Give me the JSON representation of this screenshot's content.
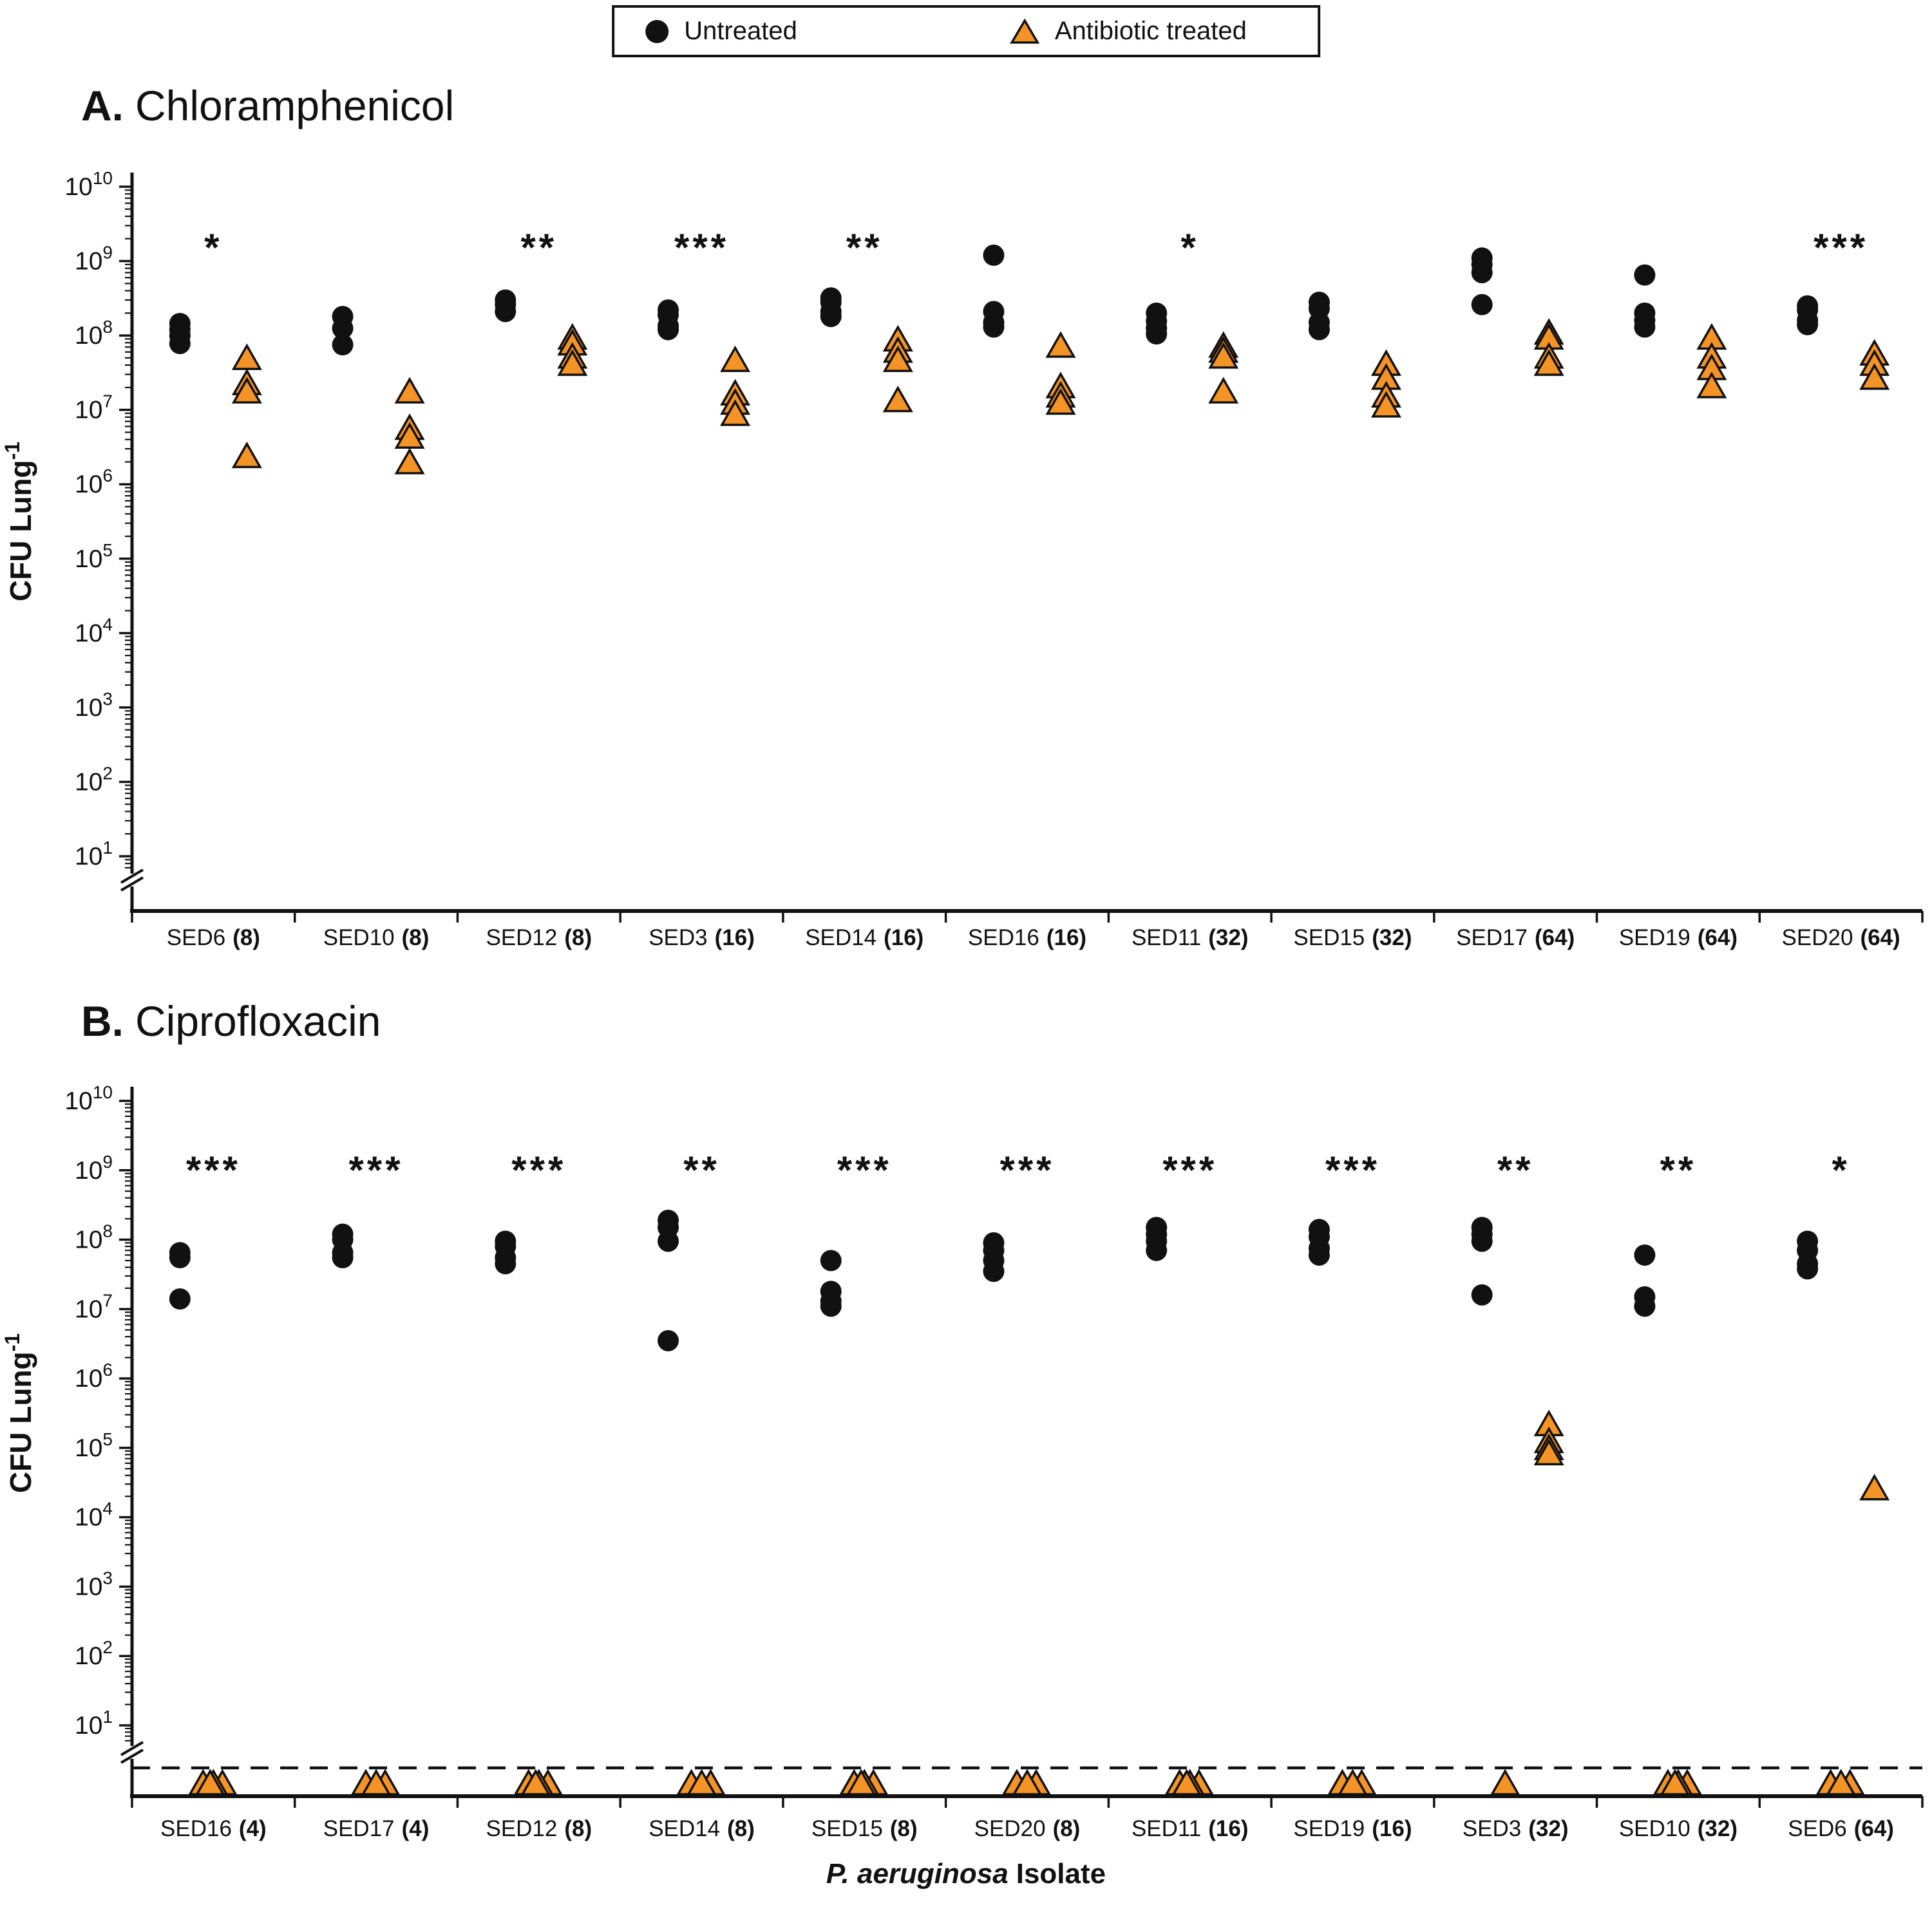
{
  "figure": {
    "xaxis_title_italic": "P. aeruginosa",
    "xaxis_title_rest": "Isolate"
  },
  "legend": {
    "items": [
      {
        "label": "Untreated",
        "marker": "circle",
        "color": "#111111"
      },
      {
        "label": "Antibiotic treated",
        "marker": "triangle",
        "color": "#F59426",
        "stroke": "#111111"
      }
    ]
  },
  "chart_data": [
    {
      "type": "scatter",
      "panel": "A",
      "title_prefix": "A.",
      "title": "Chloramphenicol",
      "y_scale": "log",
      "ylim": [
        10,
        10000000000.0
      ],
      "y_axis_break": true,
      "ylabel": "CFU Lung",
      "ylabel_sup": "-1",
      "detection_limit_line": false,
      "legend_position": "top-center",
      "groups": [
        {
          "label": "SED6",
          "mic": "(8)",
          "significance": "*",
          "untreated": [
            145000000.0,
            120000000.0,
            100000000.0,
            78000000.0
          ],
          "treated": [
            48000000.0,
            22000000.0,
            17000000.0,
            2300000.0
          ]
        },
        {
          "label": "SED10",
          "mic": "(8)",
          "significance": "",
          "untreated": [
            180000000.0,
            125000000.0,
            75000000.0
          ],
          "treated": [
            17000000.0,
            5500000.0,
            4200000.0,
            1900000.0
          ]
        },
        {
          "label": "SED12",
          "mic": "(8)",
          "significance": "**",
          "untreated": [
            300000000.0,
            260000000.0,
            210000000.0
          ],
          "treated": [
            90000000.0,
            75000000.0,
            50000000.0,
            40000000.0
          ]
        },
        {
          "label": "SED3",
          "mic": "(16)",
          "significance": "***",
          "untreated": [
            220000000.0,
            190000000.0,
            135000000.0,
            120000000.0
          ],
          "treated": [
            45000000.0,
            16000000.0,
            12000000.0,
            8500000.0
          ]
        },
        {
          "label": "SED14",
          "mic": "(16)",
          "significance": "**",
          "untreated": [
            320000000.0,
            280000000.0,
            210000000.0,
            180000000.0
          ],
          "treated": [
            85000000.0,
            60000000.0,
            45000000.0,
            13000000.0
          ]
        },
        {
          "label": "SED16",
          "mic": "(16)",
          "significance": "",
          "untreated": [
            1200000000.0,
            210000000.0,
            150000000.0,
            130000000.0
          ],
          "treated": [
            70000000.0,
            20000000.0,
            15000000.0,
            12000000.0
          ]
        },
        {
          "label": "SED11",
          "mic": "(32)",
          "significance": "*",
          "untreated": [
            200000000.0,
            155000000.0,
            125000000.0,
            105000000.0
          ],
          "treated": [
            70000000.0,
            60000000.0,
            50000000.0,
            17000000.0
          ]
        },
        {
          "label": "SED15",
          "mic": "(32)",
          "significance": "",
          "untreated": [
            280000000.0,
            230000000.0,
            150000000.0,
            120000000.0
          ],
          "treated": [
            40000000.0,
            26000000.0,
            15000000.0,
            11000000.0
          ]
        },
        {
          "label": "SED17",
          "mic": "(64)",
          "significance": "",
          "untreated": [
            1100000000.0,
            900000000.0,
            700000000.0,
            260000000.0
          ],
          "treated": [
            105000000.0,
            90000000.0,
            50000000.0,
            40000000.0
          ]
        },
        {
          "label": "SED19",
          "mic": "(64)",
          "significance": "",
          "untreated": [
            650000000.0,
            200000000.0,
            160000000.0,
            130000000.0
          ],
          "treated": [
            90000000.0,
            50000000.0,
            35000000.0,
            20000000.0
          ]
        },
        {
          "label": "SED20",
          "mic": "(64)",
          "significance": "***",
          "untreated": [
            250000000.0,
            220000000.0,
            160000000.0,
            140000000.0
          ],
          "treated": [
            55000000.0,
            40000000.0,
            26000000.0
          ]
        }
      ]
    },
    {
      "type": "scatter",
      "panel": "B",
      "title_prefix": "B.",
      "title": "Ciprofloxacin",
      "y_scale": "log",
      "ylim": [
        10,
        10000000000.0
      ],
      "y_axis_break": true,
      "ylabel": "CFU Lung",
      "ylabel_sup": "-1",
      "detection_limit_line": true,
      "legend_position": "top-center",
      "groups": [
        {
          "label": "SED16",
          "mic": "(4)",
          "significance": "***",
          "untreated": [
            65000000.0,
            55000000.0,
            14000000.0
          ],
          "treated": [
            "LOD",
            "LOD",
            "LOD",
            "LOD"
          ]
        },
        {
          "label": "SED17",
          "mic": "(4)",
          "significance": "***",
          "untreated": [
            120000000.0,
            100000000.0,
            65000000.0,
            55000000.0
          ],
          "treated": [
            "LOD",
            "LOD",
            "LOD"
          ]
        },
        {
          "label": "SED12",
          "mic": "(8)",
          "significance": "***",
          "untreated": [
            95000000.0,
            80000000.0,
            55000000.0,
            45000000.0
          ],
          "treated": [
            "LOD",
            "LOD",
            "LOD",
            "LOD"
          ]
        },
        {
          "label": "SED14",
          "mic": "(8)",
          "significance": "**",
          "untreated": [
            190000000.0,
            150000000.0,
            95000000.0,
            3500000.0
          ],
          "treated": [
            "LOD",
            "LOD",
            "LOD"
          ]
        },
        {
          "label": "SED15",
          "mic": "(8)",
          "significance": "***",
          "untreated": [
            50000000.0,
            18000000.0,
            13000000.0,
            11000000.0
          ],
          "treated": [
            "LOD",
            "LOD",
            "LOD",
            "LOD"
          ]
        },
        {
          "label": "SED20",
          "mic": "(8)",
          "significance": "***",
          "untreated": [
            90000000.0,
            70000000.0,
            50000000.0,
            35000000.0
          ],
          "treated": [
            "LOD",
            "LOD",
            "LOD"
          ]
        },
        {
          "label": "SED11",
          "mic": "(16)",
          "significance": "***",
          "untreated": [
            150000000.0,
            120000000.0,
            95000000.0,
            70000000.0
          ],
          "treated": [
            "LOD",
            "LOD",
            "LOD",
            "LOD"
          ]
        },
        {
          "label": "SED19",
          "mic": "(16)",
          "significance": "***",
          "untreated": [
            140000000.0,
            110000000.0,
            75000000.0,
            60000000.0
          ],
          "treated": [
            "LOD",
            "LOD",
            "LOD"
          ]
        },
        {
          "label": "SED3",
          "mic": "(32)",
          "significance": "**",
          "untreated": [
            150000000.0,
            120000000.0,
            95000000.0,
            16000000.0
          ],
          "treated": [
            210000.0,
            120000.0,
            95000.0,
            80000.0,
            "LOD"
          ]
        },
        {
          "label": "SED10",
          "mic": "(32)",
          "significance": "**",
          "untreated": [
            60000000.0,
            15000000.0,
            11000000.0
          ],
          "treated": [
            "LOD",
            "LOD",
            "LOD",
            "LOD"
          ]
        },
        {
          "label": "SED6",
          "mic": "(64)",
          "significance": "*",
          "untreated": [
            95000000.0,
            70000000.0,
            45000000.0,
            38000000.0
          ],
          "treated": [
            25000.0,
            "LOD",
            "LOD",
            "LOD"
          ]
        }
      ]
    }
  ]
}
